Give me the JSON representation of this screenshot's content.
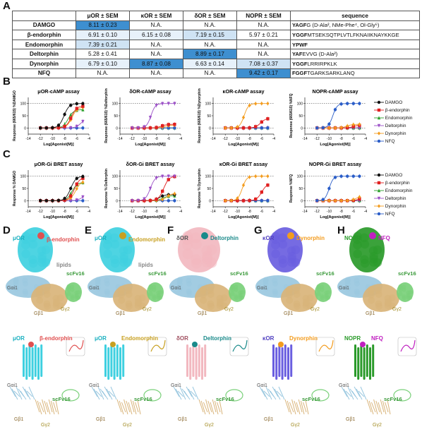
{
  "panel_labels": {
    "a": "A",
    "b": "B",
    "c": "C",
    "d": "D",
    "e": "E",
    "f": "F",
    "g": "G",
    "h": "H"
  },
  "table": {
    "headers": [
      "",
      "μOR ± SEM",
      "κOR ± SEM",
      "δOR ± SEM",
      "NOPR ± SEM",
      "sequence"
    ],
    "rows": [
      {
        "name": "DAMGO",
        "mu": "8.11 ± 0.23",
        "kappa": "N.A.",
        "delta": "N.A.",
        "nop": "N.A.",
        "seq_bold": "YAGF",
        "seq_rest": "G (D-Ala², NMe-Phe⁴, Ol-Gly⁵)"
      },
      {
        "name": "β-endorphin",
        "mu": "6.91 ± 0.10",
        "kappa": "6.15 ± 0.08",
        "delta": "7.19 ± 0.15",
        "nop": "5.97 ± 0.21",
        "seq_bold": "YGGF",
        "seq_rest": "MTSEKSQTPLVTLFKNAIIKNAYKKGE"
      },
      {
        "name": "Endomorphin",
        "mu": "7.39 ± 0.21",
        "kappa": "N.A.",
        "delta": "N.A.",
        "nop": "N.A.",
        "seq_bold": "YPWF",
        "seq_rest": ""
      },
      {
        "name": "Deltorphin",
        "mu": "5.28 ± 0.41",
        "kappa": "N.A.",
        "delta": "8.89 ± 0.17",
        "nop": "N.A.",
        "seq_bold": "YAF",
        "seq_rest": "EVVG (D-Ala²)"
      },
      {
        "name": "Dynorphin",
        "mu": "6.79 ± 0.10",
        "kappa": "8.87 ± 0.08",
        "delta": "6.63 ± 0.14",
        "nop": "7.08 ± 0.37",
        "seq_bold": "YGGF",
        "seq_rest": "LRRIRPKLK"
      },
      {
        "name": "NFQ",
        "mu": "N.A.",
        "kappa": "N.A.",
        "delta": "N.A.",
        "nop": "9.42 ± 0.17",
        "seq_bold": "FGGF",
        "seq_rest": "TGARKSARKLANQ"
      }
    ]
  },
  "colors": {
    "DAMGO": "#111111",
    "beta_endorphin": "#e02020",
    "Endomorphin": "#2ca02c",
    "Deltorphin": "#9b4fc7",
    "Dynorphin": "#f39c1e",
    "NFQ": "#2a5dc8",
    "muOR": "#3fd0e0",
    "deltaOR": "#f2b8c0",
    "kappaOR": "#6a5ee0",
    "NOPR": "#2a9a2a",
    "Gai1": "#9ac8e0",
    "Gb1": "#d9b47a",
    "Gy2": "#e0c040",
    "scFv16": "#7ad07a"
  },
  "legend": [
    "DAMGO",
    "β-endorphin",
    "Endomorphin",
    "Deltorphin",
    "Dynorphin",
    "NFQ"
  ],
  "chart_data": [
    {
      "type": "line",
      "title": "μOR-cAMP assay",
      "ylabel": "Response (665/615) %DAMGO",
      "xlabel": "Log[Agonist(M)]",
      "ylim": [
        0,
        100
      ],
      "xlim": [
        -14,
        -4
      ],
      "xticks": [
        "-14",
        "-12",
        "-10",
        "-8",
        "-6",
        "-4"
      ],
      "yticks": [
        "0",
        "50",
        "100"
      ],
      "series": [
        {
          "name": "DAMGO",
          "ec50": -8.1,
          "top": 100,
          "hill": 1.0
        },
        {
          "name": "β-endorphin",
          "ec50": -6.9,
          "top": 90,
          "hill": 1.0
        },
        {
          "name": "Endomorphin",
          "ec50": -7.4,
          "top": 75,
          "hill": 1.0
        },
        {
          "name": "Deltorphin",
          "ec50": -5.3,
          "top": 40,
          "hill": 1.0
        },
        {
          "name": "Dynorphin",
          "ec50": -6.8,
          "top": 85,
          "hill": 1.0
        },
        {
          "name": "NFQ",
          "ec50": -3,
          "top": 5,
          "hill": 1.0
        }
      ]
    },
    {
      "type": "line",
      "title": "δOR-cAMP assay",
      "ylabel": "Response (665/615) %Deltorphin",
      "xlabel": "Log[Agonist(M)]",
      "ylim": [
        0,
        100
      ],
      "xlim": [
        -14,
        -4
      ],
      "xticks": [
        "-14",
        "-12",
        "-10",
        "-8",
        "-6",
        "-4"
      ],
      "yticks": [
        "0",
        "50",
        "100"
      ],
      "series": [
        {
          "name": "DAMGO",
          "ec50": -3,
          "top": 3,
          "hill": 1.0
        },
        {
          "name": "β-endorphin",
          "ec50": -7.2,
          "top": 15,
          "hill": 1.0
        },
        {
          "name": "Endomorphin",
          "ec50": -3,
          "top": 3,
          "hill": 1.0
        },
        {
          "name": "Deltorphin",
          "ec50": -8.9,
          "top": 100,
          "hill": 1.2
        },
        {
          "name": "Dynorphin",
          "ec50": -6.6,
          "top": 12,
          "hill": 1.0
        },
        {
          "name": "NFQ",
          "ec50": -3,
          "top": 3,
          "hill": 1.0
        }
      ]
    },
    {
      "type": "line",
      "title": "κOR-cAMP assay",
      "ylabel": "Response (665/615) %Dynorphin",
      "xlabel": "Log[Agonist(M)]",
      "ylim": [
        0,
        100
      ],
      "xlim": [
        -14,
        -4
      ],
      "xticks": [
        "-14",
        "-12",
        "-10",
        "-8",
        "-6",
        "-4"
      ],
      "yticks": [
        "0",
        "50",
        "100"
      ],
      "series": [
        {
          "name": "DAMGO",
          "ec50": -3,
          "top": 3,
          "hill": 1.0
        },
        {
          "name": "β-endorphin",
          "ec50": -6.2,
          "top": 40,
          "hill": 1.0
        },
        {
          "name": "Endomorphin",
          "ec50": -3,
          "top": 3,
          "hill": 1.0
        },
        {
          "name": "Deltorphin",
          "ec50": -3,
          "top": 3,
          "hill": 1.0
        },
        {
          "name": "Dynorphin",
          "ec50": -8.9,
          "top": 100,
          "hill": 1.2
        },
        {
          "name": "NFQ",
          "ec50": -3,
          "top": 3,
          "hill": 1.0
        }
      ]
    },
    {
      "type": "line",
      "title": "NOPR-cAMP assay",
      "ylabel": "Response (665/615) %NFQ",
      "xlabel": "Log[Agonist(M)]",
      "ylim": [
        0,
        100
      ],
      "xlim": [
        -14,
        -4
      ],
      "xticks": [
        "-14",
        "-12",
        "-10",
        "-8",
        "-6",
        "-4"
      ],
      "yticks": [
        "0",
        "50",
        "100"
      ],
      "series": [
        {
          "name": "DAMGO",
          "ec50": -3,
          "top": 3,
          "hill": 1.0
        },
        {
          "name": "β-endorphin",
          "ec50": -6.0,
          "top": 12,
          "hill": 1.0
        },
        {
          "name": "Endomorphin",
          "ec50": -3,
          "top": 3,
          "hill": 1.0
        },
        {
          "name": "Deltorphin",
          "ec50": -3,
          "top": 3,
          "hill": 1.0
        },
        {
          "name": "Dynorphin",
          "ec50": -7.1,
          "top": 15,
          "hill": 1.0
        },
        {
          "name": "NFQ",
          "ec50": -9.4,
          "top": 100,
          "hill": 1.2
        }
      ]
    },
    {
      "type": "line",
      "title": "μOR-Gi BRET assay",
      "ylabel": "Response % DAMGO",
      "xlabel": "Log[Agonist(M)]",
      "ylim": [
        0,
        100
      ],
      "xlim": [
        -14,
        -4
      ],
      "xticks": [
        "-14",
        "-12",
        "-10",
        "-8",
        "-6",
        "-4"
      ],
      "yticks": [
        "0",
        "50",
        "100"
      ],
      "series": [
        {
          "name": "DAMGO",
          "ec50": -7.0,
          "top": 100,
          "hill": 1.0
        },
        {
          "name": "β-endorphin",
          "ec50": -6.4,
          "top": 95,
          "hill": 1.0
        },
        {
          "name": "Endomorphin",
          "ec50": -6.8,
          "top": 75,
          "hill": 1.0
        },
        {
          "name": "Deltorphin",
          "ec50": -5.0,
          "top": 30,
          "hill": 1.0
        },
        {
          "name": "Dynorphin",
          "ec50": -6.2,
          "top": 80,
          "hill": 1.0
        },
        {
          "name": "NFQ",
          "ec50": -3,
          "top": 3,
          "hill": 1.0
        }
      ]
    },
    {
      "type": "line",
      "title": "δOR-Gi BRET assay",
      "ylabel": "Response % Deltorphin",
      "xlabel": "Log[Agonist(M)]",
      "ylim": [
        0,
        100
      ],
      "xlim": [
        -14,
        -4
      ],
      "xticks": [
        "-14",
        "-12",
        "-10",
        "-8",
        "-6",
        "-4"
      ],
      "yticks": [
        "0",
        "50",
        "100"
      ],
      "series": [
        {
          "name": "DAMGO",
          "ec50": -7.5,
          "top": 25,
          "hill": 1.0
        },
        {
          "name": "β-endorphin",
          "ec50": -6.8,
          "top": 100,
          "hill": 1.0
        },
        {
          "name": "Endomorphin",
          "ec50": -7.0,
          "top": 20,
          "hill": 1.0
        },
        {
          "name": "Deltorphin",
          "ec50": -9.0,
          "top": 100,
          "hill": 1.1
        },
        {
          "name": "Dynorphin",
          "ec50": -6.3,
          "top": 30,
          "hill": 1.0
        },
        {
          "name": "NFQ",
          "ec50": -3,
          "top": 5,
          "hill": 1.0
        }
      ]
    },
    {
      "type": "line",
      "title": "κOR-Gi BRET assay",
      "ylabel": "Response % Dynorphin",
      "xlabel": "Log[Agonist(M)]",
      "ylim": [
        0,
        100
      ],
      "xlim": [
        -14,
        -4
      ],
      "xticks": [
        "-14",
        "-12",
        "-10",
        "-8",
        "-6",
        "-4"
      ],
      "yticks": [
        "0",
        "50",
        "100"
      ],
      "series": [
        {
          "name": "DAMGO",
          "ec50": -3,
          "top": 3,
          "hill": 1.0
        },
        {
          "name": "β-endorphin",
          "ec50": -6.0,
          "top": 70,
          "hill": 1.0
        },
        {
          "name": "Endomorphin",
          "ec50": -3,
          "top": 3,
          "hill": 1.0
        },
        {
          "name": "Deltorphin",
          "ec50": -3,
          "top": 3,
          "hill": 1.0
        },
        {
          "name": "Dynorphin",
          "ec50": -9.2,
          "top": 100,
          "hill": 1.2
        },
        {
          "name": "NFQ",
          "ec50": -3,
          "top": 3,
          "hill": 1.0
        }
      ]
    },
    {
      "type": "line",
      "title": "NOPR-Gi BRET assay",
      "ylabel": "Response %NFQ",
      "xlabel": "Log[Agonist(M)]",
      "ylim": [
        0,
        100
      ],
      "xlim": [
        -14,
        -4
      ],
      "xticks": [
        "-14",
        "-12",
        "-10",
        "-8",
        "-6",
        "-4"
      ],
      "yticks": [
        "0",
        "50",
        "100"
      ],
      "series": [
        {
          "name": "DAMGO",
          "ec50": -3,
          "top": 3,
          "hill": 1.0
        },
        {
          "name": "β-endorphin",
          "ec50": -5.0,
          "top": 15,
          "hill": 1.0
        },
        {
          "name": "Endomorphin",
          "ec50": -3,
          "top": 3,
          "hill": 1.0
        },
        {
          "name": "Deltorphin",
          "ec50": -3,
          "top": 3,
          "hill": 1.0
        },
        {
          "name": "Dynorphin",
          "ec50": -5.5,
          "top": 20,
          "hill": 1.0
        },
        {
          "name": "NFQ",
          "ec50": -10.0,
          "top": 100,
          "hill": 1.3
        }
      ]
    }
  ],
  "structures": [
    {
      "receptor": "μOR",
      "ligand": "β-endorphin",
      "extra": "lipids",
      "receptor_color": "#3fd0e0",
      "ligand_color": "#e05050"
    },
    {
      "receptor": "μOR",
      "ligand": "Endomorphin",
      "extra": "lipids",
      "receptor_color": "#3fd0e0",
      "ligand_color": "#c8a020"
    },
    {
      "receptor": "δOR",
      "ligand": "Deltorphin",
      "extra": "",
      "receptor_color": "#f2b8c0",
      "ligand_color": "#1a8a8a"
    },
    {
      "receptor": "κOR",
      "ligand": "Dynorphin",
      "extra": "",
      "receptor_color": "#6a5ee0",
      "ligand_color": "#f39c1e"
    },
    {
      "receptor": "NOPR",
      "ligand": "NFQ",
      "extra": "",
      "receptor_color": "#2a9a2a",
      "ligand_color": "#c020c0"
    }
  ],
  "subunits": {
    "gai": "Gαi1",
    "gb": "Gβ1",
    "gy": "Gγ2",
    "scfv": "scFv16"
  }
}
